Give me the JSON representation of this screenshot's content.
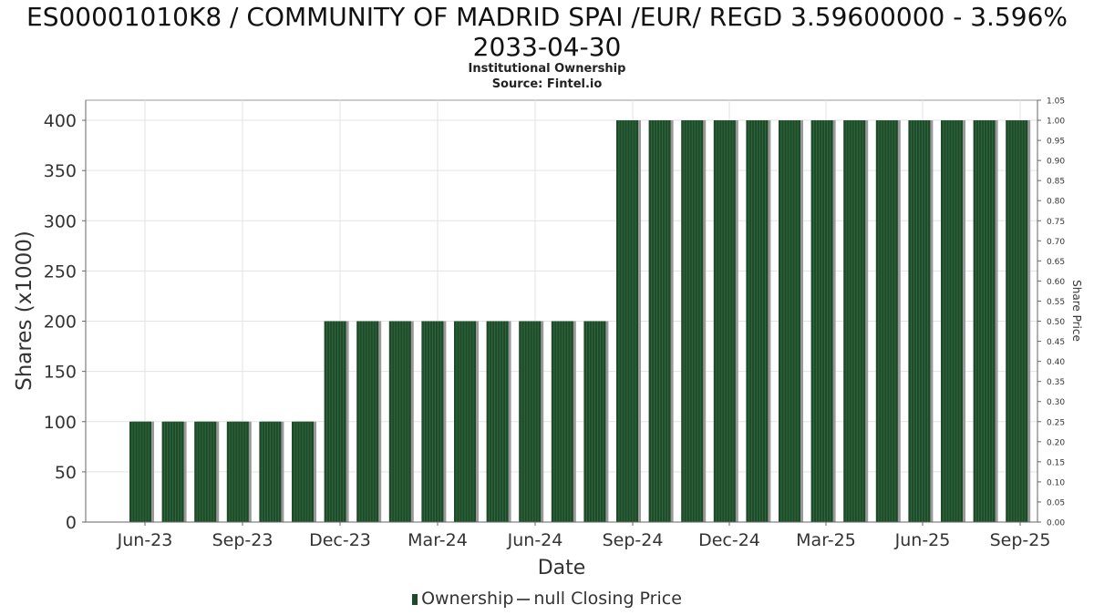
{
  "title_line1": "ES00001010K8 / COMMUNITY OF MADRID SPAI /EUR/ REGD 3.59600000 - 3.596%",
  "title_line2": "2033-04-30",
  "subtitle_line1": "Institutional Ownership",
  "subtitle_line2": "Source: Fintel.io",
  "legend": {
    "ownership": "Ownership",
    "price": "null Closing Price"
  },
  "chart_data": {
    "type": "bar",
    "xlabel": "Date",
    "ylabel": "Shares (x1000)",
    "y2label": "Share Price",
    "ylim": [
      0,
      420
    ],
    "y2lim": [
      0,
      1.05
    ],
    "yticks": [
      0,
      50,
      100,
      150,
      200,
      250,
      300,
      350,
      400
    ],
    "y2ticks": [
      "0.00",
      "0.05",
      "0.10",
      "0.15",
      "0.20",
      "0.25",
      "0.30",
      "0.35",
      "0.40",
      "0.45",
      "0.50",
      "0.55",
      "0.60",
      "0.65",
      "0.70",
      "0.75",
      "0.80",
      "0.85",
      "0.90",
      "0.95",
      "1.00",
      "1.05"
    ],
    "xtick_labels": [
      "Jun-23",
      "Sep-23",
      "Dec-23",
      "Mar-24",
      "Jun-24",
      "Sep-24",
      "Dec-24",
      "Mar-25",
      "Jun-25",
      "Sep-25"
    ],
    "grid": true,
    "legend_position": "bottom",
    "colors": {
      "bar": "#1e4a2a",
      "bar_shadow": "#999999"
    },
    "series": [
      {
        "name": "Ownership",
        "values": [
          100,
          100,
          100,
          100,
          100,
          100,
          200,
          200,
          200,
          200,
          200,
          200,
          200,
          200,
          200,
          400,
          400,
          400,
          400,
          400,
          400,
          400,
          400,
          400,
          400,
          400,
          400,
          400
        ]
      }
    ]
  }
}
